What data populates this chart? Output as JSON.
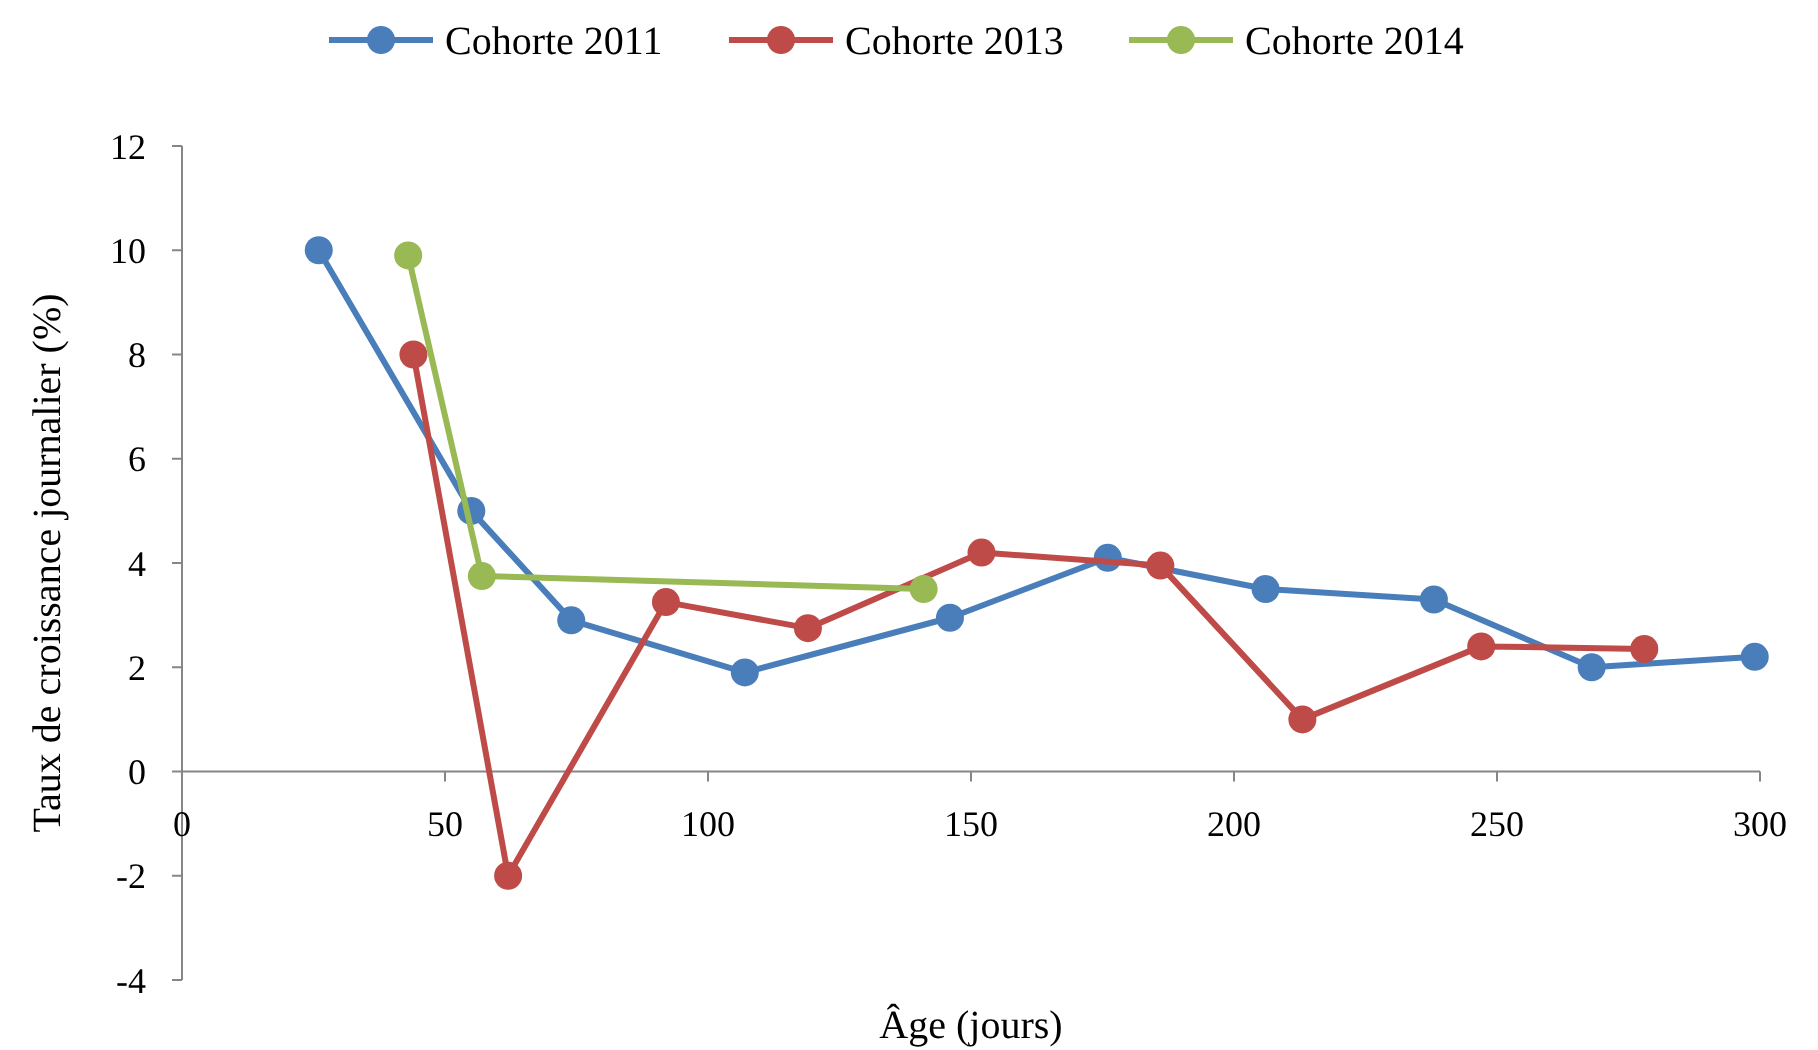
{
  "chart_data": {
    "type": "line",
    "xlabel": "Âge (jours)",
    "ylabel": "Taux de croissance journalier (%)",
    "xlim": [
      0,
      300
    ],
    "xticks": [
      0,
      50,
      100,
      150,
      200,
      250,
      300
    ],
    "ylim": [
      -4,
      12
    ],
    "yticks": [
      -4,
      -2,
      0,
      2,
      4,
      6,
      8,
      10,
      12
    ],
    "grid": false,
    "legend": "top",
    "marker": "circle",
    "line_style": "solid",
    "series": [
      {
        "name": "Cohorte 2011",
        "color": "#4a7ebb",
        "x": [
          26,
          55,
          74,
          107,
          146,
          176,
          206,
          238,
          268,
          299
        ],
        "values": [
          10.0,
          5.0,
          2.9,
          1.9,
          2.95,
          4.1,
          3.5,
          3.3,
          2.0,
          2.2
        ]
      },
      {
        "name": "Cohorte 2013",
        "color": "#be4b48",
        "x": [
          44,
          62,
          92,
          119,
          152,
          186,
          213,
          247,
          278
        ],
        "values": [
          8.0,
          -2.0,
          3.25,
          2.75,
          4.2,
          3.95,
          1.0,
          2.4,
          2.35
        ]
      },
      {
        "name": "Cohorte 2014",
        "color": "#98b954",
        "x": [
          43,
          57,
          141
        ],
        "values": [
          9.9,
          3.75,
          3.5
        ]
      }
    ]
  }
}
